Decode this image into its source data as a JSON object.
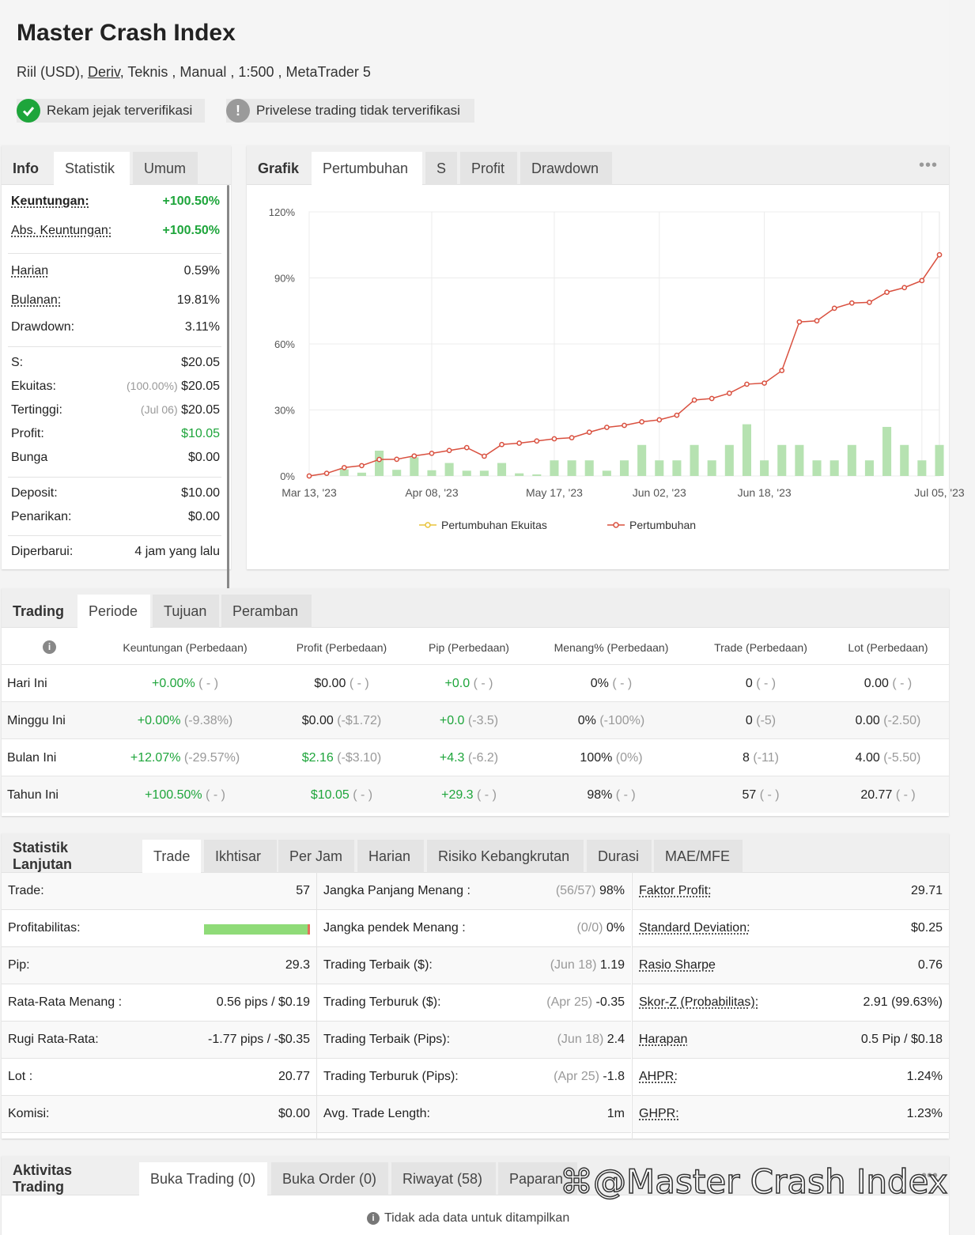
{
  "header": {
    "title": "Master Crash Index",
    "subtitle_prefix": "Riil (USD),",
    "subtitle_link": "Deriv",
    "subtitle_suffix": ", Teknis , Manual , 1:500 , MetaTrader 5",
    "badge_verified": "Rekam jejak terverifikasi",
    "badge_unverified": "Privelese trading tidak terverifikasi",
    "colors": {
      "verified": "#1ea53b",
      "unverified": "#9a9a9a"
    }
  },
  "info_panel": {
    "tabs": [
      "Info",
      "Statistik",
      "Umum"
    ],
    "rows": [
      {
        "key": "Keuntungan:",
        "value": "+100.50%"
      },
      {
        "key": "Abs. Keuntungan:",
        "value": "+100.50%"
      },
      {
        "key": "Harian",
        "value": "0.59%"
      },
      {
        "key": "Bulanan:",
        "value": "19.81%"
      },
      {
        "key": "Drawdown:",
        "value": "3.11%"
      },
      {
        "key": "S:",
        "value": "$20.05"
      },
      {
        "key": "Ekuitas:",
        "note": "(100.00%)",
        "value": "$20.05"
      },
      {
        "key": "Tertinggi:",
        "note": "(Jul 06)",
        "value": "$20.05"
      },
      {
        "key": "Profit:",
        "value": "$10.05"
      },
      {
        "key": "Bunga",
        "value": "$0.00"
      },
      {
        "key": "Deposit:",
        "value": "$10.00"
      },
      {
        "key": "Penarikan:",
        "value": "$0.00"
      },
      {
        "key": "Diperbarui:",
        "value": "4 jam yang lalu"
      }
    ]
  },
  "chart_panel": {
    "tabs": [
      "Grafik",
      "Pertumbuhan",
      "S",
      "Profit",
      "Drawdown"
    ],
    "menu_icon": "more-dots-icon"
  },
  "chart_data": {
    "type": "line",
    "ylim": [
      0,
      120
    ],
    "yticks": [
      "0%",
      "30%",
      "60%",
      "90%",
      "120%"
    ],
    "xticks": [
      "Mar 13, '23",
      "Apr 08, '23",
      "May 17, '23",
      "Jun 02, '23",
      "Jun 18, '23",
      "Jul 05, '23"
    ],
    "legend": [
      "Pertumbuhan Ekuitas",
      "Pertumbuhan"
    ],
    "colors": {
      "line": "#d9503f",
      "equity": "#e8c33a",
      "bars": "#b6e2b1"
    },
    "series": [
      {
        "name": "Pertumbuhan",
        "values": [
          0,
          1.2,
          3.8,
          4.7,
          7.5,
          7.6,
          9.1,
          10.3,
          11.6,
          12.9,
          9,
          14.3,
          14.9,
          15.9,
          16.9,
          17.4,
          19.9,
          22.1,
          23,
          24.6,
          25.5,
          27.6,
          34.5,
          35.2,
          37.6,
          41.7,
          42.2,
          47.9,
          70,
          70.5,
          76.2,
          78.6,
          78.9,
          83.5,
          85.6,
          88.8,
          100.5
        ]
      }
    ],
    "bars": [
      0,
      0,
      3,
      1.5,
      11.5,
      2.8,
      8.5,
      2.6,
      5.9,
      2.4,
      2.4,
      5.9,
      1.2,
      0.7,
      7.1,
      7.1,
      7.1,
      2.4,
      7.1,
      14.1,
      7.1,
      7.1,
      14.1,
      7.1,
      14.1,
      23.5,
      7.1,
      14.1,
      14.1,
      7.1,
      7.1,
      14.1,
      7.1,
      22.3,
      14.1,
      7.1,
      14.1
    ]
  },
  "trading_panel": {
    "tabs": [
      "Trading",
      "Periode",
      "Tujuan",
      "Peramban"
    ],
    "headers": [
      "Keuntungan (Perbedaan)",
      "Profit (Perbedaan)",
      "Pip (Perbedaan)",
      "Menang% (Perbedaan)",
      "Trade (Perbedaan)",
      "Lot (Perbedaan)"
    ],
    "rows": [
      {
        "label": "Hari Ini",
        "cells": [
          [
            "+0.00%",
            "( - )"
          ],
          [
            "$0.00",
            "( - )"
          ],
          [
            "+0.0",
            "( - )"
          ],
          [
            "0%",
            "( - )"
          ],
          [
            "0",
            "( - )"
          ],
          [
            "0.00",
            "( - )"
          ]
        ]
      },
      {
        "label": "Minggu Ini",
        "cells": [
          [
            "+0.00%",
            "(-9.38%)"
          ],
          [
            "$0.00",
            "(-$1.72)"
          ],
          [
            "+0.0",
            "(-3.5)"
          ],
          [
            "0%",
            "(-100%)"
          ],
          [
            "0",
            "(-5)"
          ],
          [
            "0.00",
            "(-2.50)"
          ]
        ]
      },
      {
        "label": "Bulan Ini",
        "cells": [
          [
            "+12.07%",
            "(-29.57%)"
          ],
          [
            "$2.16",
            "(-$3.10)"
          ],
          [
            "+4.3",
            "(-6.2)"
          ],
          [
            "100%",
            "(0%)"
          ],
          [
            "8",
            "(-11)"
          ],
          [
            "4.00",
            "(-5.50)"
          ]
        ]
      },
      {
        "label": "Tahun Ini",
        "cells": [
          [
            "+100.50%",
            "( - )"
          ],
          [
            "$10.05",
            "( - )"
          ],
          [
            "+29.3",
            "( - )"
          ],
          [
            "98%",
            "( - )"
          ],
          [
            "57",
            "( - )"
          ],
          [
            "20.77",
            "( - )"
          ]
        ]
      }
    ]
  },
  "advanced_panel": {
    "tabs": [
      "Statistik Lanjutan",
      "Trade",
      "Ikhtisar",
      "Per Jam",
      "Harian",
      "Risiko Kebangkrutan",
      "Durasi",
      "MAE/MFE"
    ],
    "col1": [
      {
        "key": "Trade:",
        "value": "57"
      },
      {
        "key": "Profitabilitas:",
        "value": "",
        "win_fraction": 0.98
      },
      {
        "key": "Pip:",
        "value": "29.3"
      },
      {
        "key": "Rata-Rata Menang :",
        "value": "0.56 pips / $0.19"
      },
      {
        "key": "Rugi Rata-Rata:",
        "value": "-1.77 pips / -$0.35"
      },
      {
        "key": "Lot :",
        "value": "20.77"
      },
      {
        "key": "Komisi:",
        "value": "$0.00"
      }
    ],
    "col2": [
      {
        "key": "Jangka Panjang Menang :",
        "note": "(56/57)",
        "value": "98%"
      },
      {
        "key": "Jangka pendek Menang :",
        "note": "(0/0)",
        "value": "0%"
      },
      {
        "key": "Trading Terbaik ($):",
        "note": "(Jun 18)",
        "value": "1.19"
      },
      {
        "key": "Trading Terburuk ($):",
        "note": "(Apr 25)",
        "value": "-0.35"
      },
      {
        "key": "Trading Terbaik (Pips):",
        "note": "(Jun 18)",
        "value": "2.4"
      },
      {
        "key": "Trading Terburuk (Pips):",
        "note": "(Apr 25)",
        "value": "-1.8"
      },
      {
        "key": "Avg. Trade Length:",
        "note": "",
        "value": "1m"
      }
    ],
    "col3": [
      {
        "key": "Faktor Profit:",
        "value": "29.71"
      },
      {
        "key": "Standard Deviation:",
        "value": "$0.25"
      },
      {
        "key": "Rasio Sharpe",
        "value": "0.76"
      },
      {
        "key": "Skor-Z (Probabilitas):",
        "value": "2.91 (99.63%)"
      },
      {
        "key": "Harapan",
        "value": "0.5 Pip / $0.18"
      },
      {
        "key": "AHPR:",
        "value": "1.24%"
      },
      {
        "key": "GHPR:",
        "value": "1.23%"
      }
    ]
  },
  "activity_panel": {
    "tabs": [
      "Aktivitas Trading",
      "Buka Trading (0)",
      "Buka Order (0)",
      "Riwayat (58)",
      "Paparan"
    ],
    "empty_message": "Tidak ada data untuk ditampilkan"
  },
  "watermark": "@Master Crash Index"
}
